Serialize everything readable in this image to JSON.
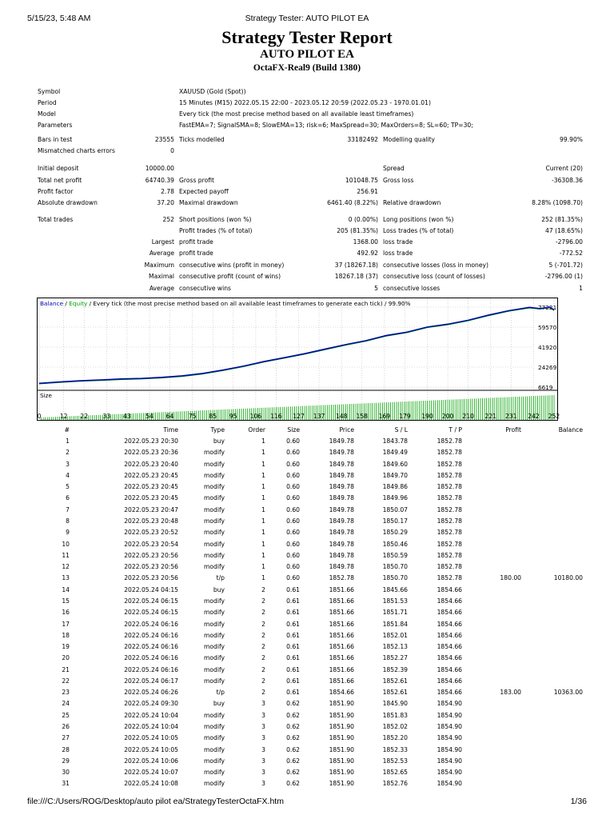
{
  "header": {
    "datetime": "5/15/23, 5:48 AM",
    "window_title": "Strategy Tester: AUTO PILOT EA"
  },
  "footer": {
    "path": "file:///C:/Users/ROG/Desktop/auto pilot ea/StrategyTesterOctaFX.htm",
    "page": "1/36"
  },
  "report": {
    "title": "Strategy Tester Report",
    "ea_name": "AUTO PILOT EA",
    "server": "OctaFX-Real9 (Build 1380)"
  },
  "info": [
    {
      "label": "Symbol",
      "value": "XAUUSD (Gold (Spot))"
    },
    {
      "label": "Period",
      "value": "15 Minutes (M15) 2022.05.15 22:00 - 2023.05.12 20:59 (2022.05.23 - 1970.01.01)"
    },
    {
      "label": "Model",
      "value": "Every tick (the most precise method based on all available least timeframes)"
    },
    {
      "label": "Parameters",
      "value": "FastEMA=7; SignalSMA=8; SlowEMA=13; risk=6; MaxSpread=30; MaxOrders=8; SL=60; TP=30;"
    }
  ],
  "stats": {
    "bars_label": "Bars in test",
    "bars": "23555",
    "ticks_label": "Ticks modelled",
    "ticks": "33182492",
    "quality_label": "Modelling quality",
    "quality": "99.90%",
    "mismatch_label": "Mismatched charts errors",
    "mismatch": "0",
    "deposit_label": "Initial deposit",
    "deposit": "10000.00",
    "spread_label": "Spread",
    "spread": "Current (20)",
    "net_label": "Total net profit",
    "net": "64740.39",
    "gross_profit_label": "Gross profit",
    "gross_profit": "101048.75",
    "gross_loss_label": "Gross loss",
    "gross_loss": "-36308.36",
    "pf_label": "Profit factor",
    "pf": "2.78",
    "payoff_label": "Expected payoff",
    "payoff": "256.91",
    "abs_dd_label": "Absolute drawdown",
    "abs_dd": "37.20",
    "max_dd_label": "Maximal drawdown",
    "max_dd": "6461.40 (8.22%)",
    "rel_dd_label": "Relative drawdown",
    "rel_dd": "8.28% (1098.70)",
    "trades_label": "Total trades",
    "trades": "252",
    "short_label": "Short positions (won %)",
    "short": "0 (0.00%)",
    "long_label": "Long positions (won %)",
    "long": "252 (81.35%)",
    "pt_label": "Profit trades (% of total)",
    "pt": "205 (81.35%)",
    "lt_label": "Loss trades (% of total)",
    "lt": "47 (18.65%)",
    "largest": "Largest",
    "average": "Average",
    "maximum": "Maximum",
    "maximal": "Maximal",
    "profit_trade_label": "profit trade",
    "loss_trade_label": "loss trade",
    "largest_profit": "1368.00",
    "largest_loss": "-2796.00",
    "avg_profit": "492.92",
    "avg_loss": "-772.52",
    "cw_money_label": "consecutive wins (profit in money)",
    "cw_money": "37 (18267.18)",
    "cl_money_label": "consecutive losses (loss in money)",
    "cl_money": "5 (-701.72)",
    "cp_count_label": "consecutive profit (count of wins)",
    "cp_count": "18267.18 (37)",
    "closs_count_label": "consecutive loss (count of losses)",
    "closs_count": "-2796.00 (1)",
    "avg_cw_label": "consecutive wins",
    "avg_cw": "5",
    "avg_cl_label": "consecutive losses",
    "avg_cl": "1"
  },
  "chart_data": {
    "type": "line",
    "legend_balance": "Balance",
    "legend_sep": " / ",
    "legend_equity": "Equity",
    "legend_rest": " / Every tick (the most precise method based on all available least timeframes to generate each tick) / 99.90%",
    "size_label": "Size",
    "y_ticks": [
      "77221",
      "59570",
      "41920",
      "24269",
      "6619"
    ],
    "ylim": [
      6619,
      77221
    ],
    "x_ticks": [
      "0",
      "12",
      "22",
      "33",
      "43",
      "54",
      "64",
      "75",
      "85",
      "95",
      "106",
      "116",
      "127",
      "137",
      "148",
      "158",
      "169",
      "179",
      "190",
      "200",
      "210",
      "221",
      "231",
      "242",
      "252"
    ],
    "series": [
      {
        "name": "Balance",
        "color": "#0000b4",
        "x": [
          0,
          10,
          20,
          30,
          40,
          50,
          60,
          70,
          80,
          90,
          100,
          110,
          120,
          130,
          140,
          150,
          160,
          170,
          180,
          190,
          200,
          210,
          220,
          230,
          240,
          245,
          250,
          252
        ],
        "values": [
          10000,
          11200,
          12300,
          13000,
          13800,
          14300,
          15200,
          16600,
          18700,
          21700,
          25200,
          29200,
          32700,
          36200,
          40200,
          44200,
          47700,
          52200,
          55200,
          59700,
          62200,
          65700,
          70200,
          74200,
          77000,
          76000,
          77221,
          74740
        ]
      }
    ],
    "colors": {
      "balance": "#0000b4",
      "equity": "#00a000",
      "size_bar": "#00a000",
      "grid": "#c8c8c8"
    }
  },
  "trades_table": {
    "headers": [
      "#",
      "Time",
      "Type",
      "Order",
      "Size",
      "Price",
      "S / L",
      "T / P",
      "Profit",
      "Balance"
    ],
    "rows": [
      [
        "1",
        "2022.05.23 20:30",
        "buy",
        "1",
        "0.60",
        "1849.78",
        "1843.78",
        "1852.78",
        "",
        ""
      ],
      [
        "2",
        "2022.05.23 20:36",
        "modify",
        "1",
        "0.60",
        "1849.78",
        "1849.49",
        "1852.78",
        "",
        ""
      ],
      [
        "3",
        "2022.05.23 20:40",
        "modify",
        "1",
        "0.60",
        "1849.78",
        "1849.60",
        "1852.78",
        "",
        ""
      ],
      [
        "4",
        "2022.05.23 20:45",
        "modify",
        "1",
        "0.60",
        "1849.78",
        "1849.70",
        "1852.78",
        "",
        ""
      ],
      [
        "5",
        "2022.05.23 20:45",
        "modify",
        "1",
        "0.60",
        "1849.78",
        "1849.86",
        "1852.78",
        "",
        ""
      ],
      [
        "6",
        "2022.05.23 20:45",
        "modify",
        "1",
        "0.60",
        "1849.78",
        "1849.96",
        "1852.78",
        "",
        ""
      ],
      [
        "7",
        "2022.05.23 20:47",
        "modify",
        "1",
        "0.60",
        "1849.78",
        "1850.07",
        "1852.78",
        "",
        ""
      ],
      [
        "8",
        "2022.05.23 20:48",
        "modify",
        "1",
        "0.60",
        "1849.78",
        "1850.17",
        "1852.78",
        "",
        ""
      ],
      [
        "9",
        "2022.05.23 20:52",
        "modify",
        "1",
        "0.60",
        "1849.78",
        "1850.29",
        "1852.78",
        "",
        ""
      ],
      [
        "10",
        "2022.05.23 20:54",
        "modify",
        "1",
        "0.60",
        "1849.78",
        "1850.46",
        "1852.78",
        "",
        ""
      ],
      [
        "11",
        "2022.05.23 20:56",
        "modify",
        "1",
        "0.60",
        "1849.78",
        "1850.59",
        "1852.78",
        "",
        ""
      ],
      [
        "12",
        "2022.05.23 20:56",
        "modify",
        "1",
        "0.60",
        "1849.78",
        "1850.70",
        "1852.78",
        "",
        ""
      ],
      [
        "13",
        "2022.05.23 20:56",
        "t/p",
        "1",
        "0.60",
        "1852.78",
        "1850.70",
        "1852.78",
        "180.00",
        "10180.00"
      ],
      [
        "14",
        "2022.05.24 04:15",
        "buy",
        "2",
        "0.61",
        "1851.66",
        "1845.66",
        "1854.66",
        "",
        ""
      ],
      [
        "15",
        "2022.05.24 06:15",
        "modify",
        "2",
        "0.61",
        "1851.66",
        "1851.53",
        "1854.66",
        "",
        ""
      ],
      [
        "16",
        "2022.05.24 06:15",
        "modify",
        "2",
        "0.61",
        "1851.66",
        "1851.71",
        "1854.66",
        "",
        ""
      ],
      [
        "17",
        "2022.05.24 06:16",
        "modify",
        "2",
        "0.61",
        "1851.66",
        "1851.84",
        "1854.66",
        "",
        ""
      ],
      [
        "18",
        "2022.05.24 06:16",
        "modify",
        "2",
        "0.61",
        "1851.66",
        "1852.01",
        "1854.66",
        "",
        ""
      ],
      [
        "19",
        "2022.05.24 06:16",
        "modify",
        "2",
        "0.61",
        "1851.66",
        "1852.13",
        "1854.66",
        "",
        ""
      ],
      [
        "20",
        "2022.05.24 06:16",
        "modify",
        "2",
        "0.61",
        "1851.66",
        "1852.27",
        "1854.66",
        "",
        ""
      ],
      [
        "21",
        "2022.05.24 06:16",
        "modify",
        "2",
        "0.61",
        "1851.66",
        "1852.39",
        "1854.66",
        "",
        ""
      ],
      [
        "22",
        "2022.05.24 06:17",
        "modify",
        "2",
        "0.61",
        "1851.66",
        "1852.61",
        "1854.66",
        "",
        ""
      ],
      [
        "23",
        "2022.05.24 06:26",
        "t/p",
        "2",
        "0.61",
        "1854.66",
        "1852.61",
        "1854.66",
        "183.00",
        "10363.00"
      ],
      [
        "24",
        "2022.05.24 09:30",
        "buy",
        "3",
        "0.62",
        "1851.90",
        "1845.90",
        "1854.90",
        "",
        ""
      ],
      [
        "25",
        "2022.05.24 10:04",
        "modify",
        "3",
        "0.62",
        "1851.90",
        "1851.83",
        "1854.90",
        "",
        ""
      ],
      [
        "26",
        "2022.05.24 10:04",
        "modify",
        "3",
        "0.62",
        "1851.90",
        "1852.02",
        "1854.90",
        "",
        ""
      ],
      [
        "27",
        "2022.05.24 10:05",
        "modify",
        "3",
        "0.62",
        "1851.90",
        "1852.20",
        "1854.90",
        "",
        ""
      ],
      [
        "28",
        "2022.05.24 10:05",
        "modify",
        "3",
        "0.62",
        "1851.90",
        "1852.33",
        "1854.90",
        "",
        ""
      ],
      [
        "29",
        "2022.05.24 10:06",
        "modify",
        "3",
        "0.62",
        "1851.90",
        "1852.53",
        "1854.90",
        "",
        ""
      ],
      [
        "30",
        "2022.05.24 10:07",
        "modify",
        "3",
        "0.62",
        "1851.90",
        "1852.65",
        "1854.90",
        "",
        ""
      ],
      [
        "31",
        "2022.05.24 10:08",
        "modify",
        "3",
        "0.62",
        "1851.90",
        "1852.76",
        "1854.90",
        "",
        ""
      ]
    ]
  }
}
